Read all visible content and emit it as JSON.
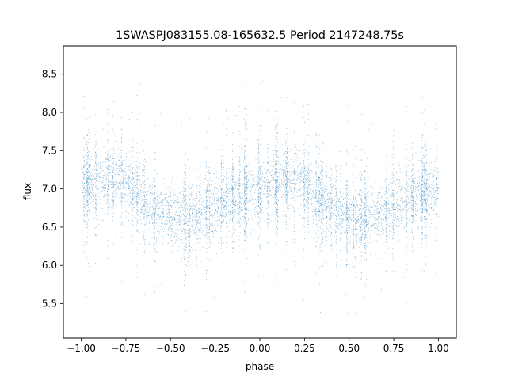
{
  "chart_data": {
    "type": "scatter",
    "title": "1SWASPJ083155.08-165632.5 Period 2147248.75s",
    "xlabel": "phase",
    "ylabel": "flux",
    "xlim": [
      -1.1,
      1.1
    ],
    "ylim": [
      5.05,
      8.87
    ],
    "grid": false,
    "legend": "none",
    "marker_color": "#1f77b4",
    "x_ticks": [
      -1.0,
      -0.75,
      -0.5,
      -0.25,
      0.0,
      0.25,
      0.5,
      0.75,
      1.0
    ],
    "x_tick_labels": [
      "−1.00",
      "−0.75",
      "−0.50",
      "−0.25",
      "0.00",
      "0.25",
      "0.50",
      "0.75",
      "1.00"
    ],
    "y_ticks": [
      5.5,
      6.0,
      6.5,
      7.0,
      7.5,
      8.0,
      8.5
    ],
    "y_tick_labels": [
      "5.5",
      "6.0",
      "6.5",
      "7.0",
      "7.5",
      "8.0",
      "8.5"
    ],
    "series": [
      {
        "x": [
          -1.0,
          -0.9,
          -0.8,
          -0.7,
          -0.6,
          -0.5,
          -0.4,
          -0.3,
          -0.2,
          -0.1,
          0.0,
          0.1,
          0.2,
          0.3,
          0.4,
          0.5,
          0.6,
          0.7,
          0.8,
          0.9,
          1.0
        ],
        "y": [
          7.0,
          7.12,
          7.15,
          6.95,
          6.75,
          6.65,
          6.6,
          6.7,
          6.85,
          6.95,
          7.0,
          7.12,
          7.15,
          6.95,
          6.75,
          6.65,
          6.6,
          6.7,
          6.85,
          6.95,
          7.0
        ]
      }
    ]
  }
}
